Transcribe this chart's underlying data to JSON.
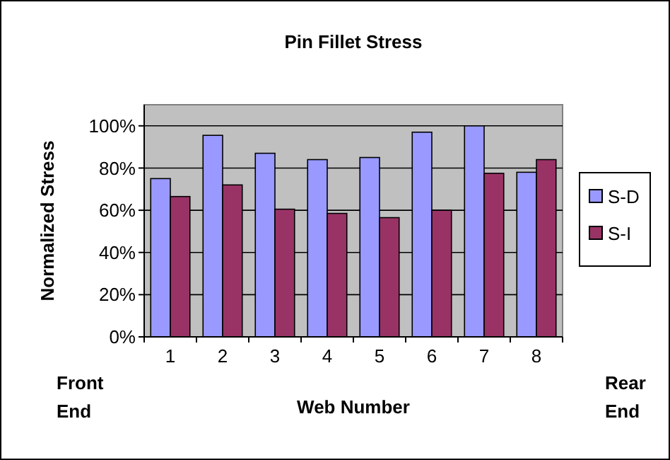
{
  "chart_data": {
    "type": "bar",
    "title": "Pin Fillet Stress",
    "xlabel": "Web Number",
    "ylabel": "Normalized Stress",
    "categories": [
      "1",
      "2",
      "3",
      "4",
      "5",
      "6",
      "7",
      "8"
    ],
    "series": [
      {
        "name": "S-D",
        "color": "#9999ff",
        "values": [
          75,
          95.5,
          87,
          84,
          85,
          97,
          100,
          78
        ]
      },
      {
        "name": "S-I",
        "color": "#993366",
        "values": [
          66.5,
          72,
          60.5,
          58.5,
          56.5,
          60,
          77.5,
          84
        ]
      }
    ],
    "ylim": [
      0,
      110
    ],
    "yticks": [
      {
        "value": 0,
        "label": "0%"
      },
      {
        "value": 20,
        "label": "20%"
      },
      {
        "value": 40,
        "label": "40%"
      },
      {
        "value": 60,
        "label": "60%"
      },
      {
        "value": 80,
        "label": "80%"
      },
      {
        "value": 100,
        "label": "100%"
      }
    ],
    "grid": "y",
    "legend": "right",
    "annotations": [
      "Front\nEnd",
      "Rear\nEnd"
    ]
  }
}
